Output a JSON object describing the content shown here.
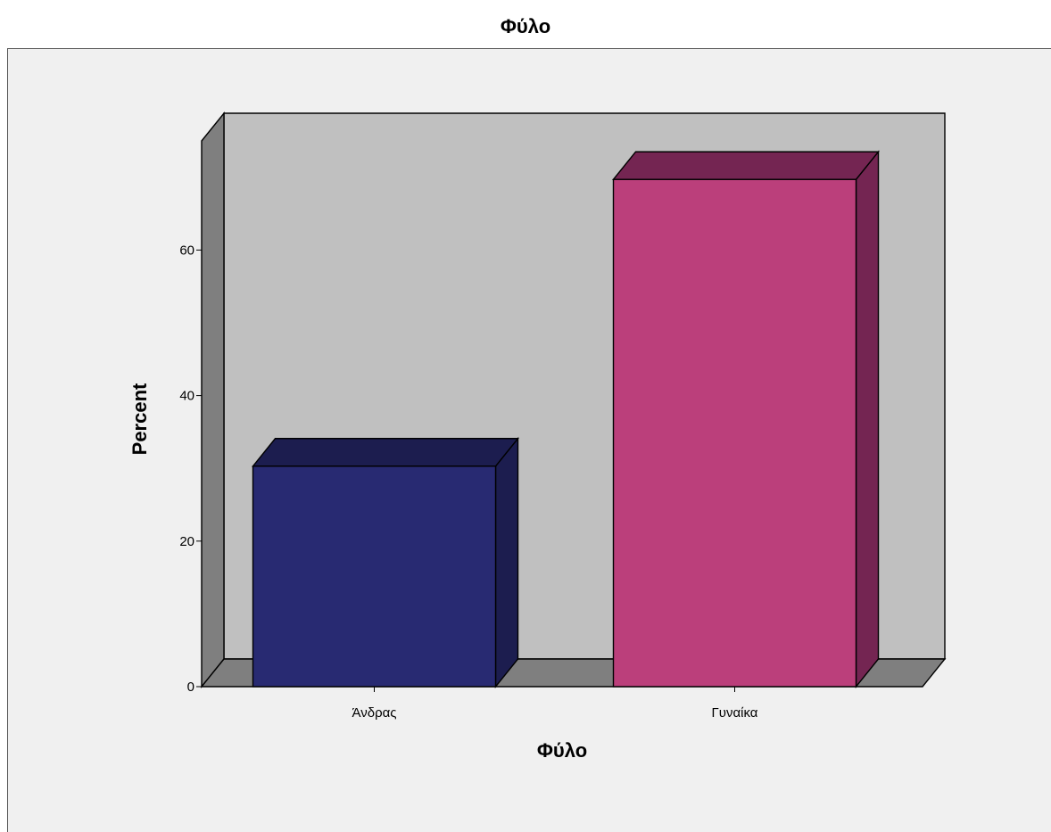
{
  "chart_data": {
    "type": "bar",
    "title": "Φύλο",
    "xlabel": "Φύλο",
    "ylabel": "Percent",
    "categories": [
      "Άνδρας",
      "Γυναίκα"
    ],
    "values": [
      30.3,
      69.7
    ],
    "ylim": [
      0,
      75
    ],
    "yticks": [
      0,
      20,
      40,
      60
    ],
    "grid": false,
    "style": "3d",
    "colors": {
      "bars": [
        "#282a72",
        "#bb3f7b"
      ],
      "bar_tops": [
        "#1c1d4f",
        "#742552"
      ],
      "bar_sides": [
        "#1c1d4f",
        "#742552"
      ],
      "back_wall": "#c0c0c0",
      "side_wall": "#7f7f7f",
      "floor": "#7f7f7f",
      "outer_background": "#f0f0f0"
    }
  }
}
